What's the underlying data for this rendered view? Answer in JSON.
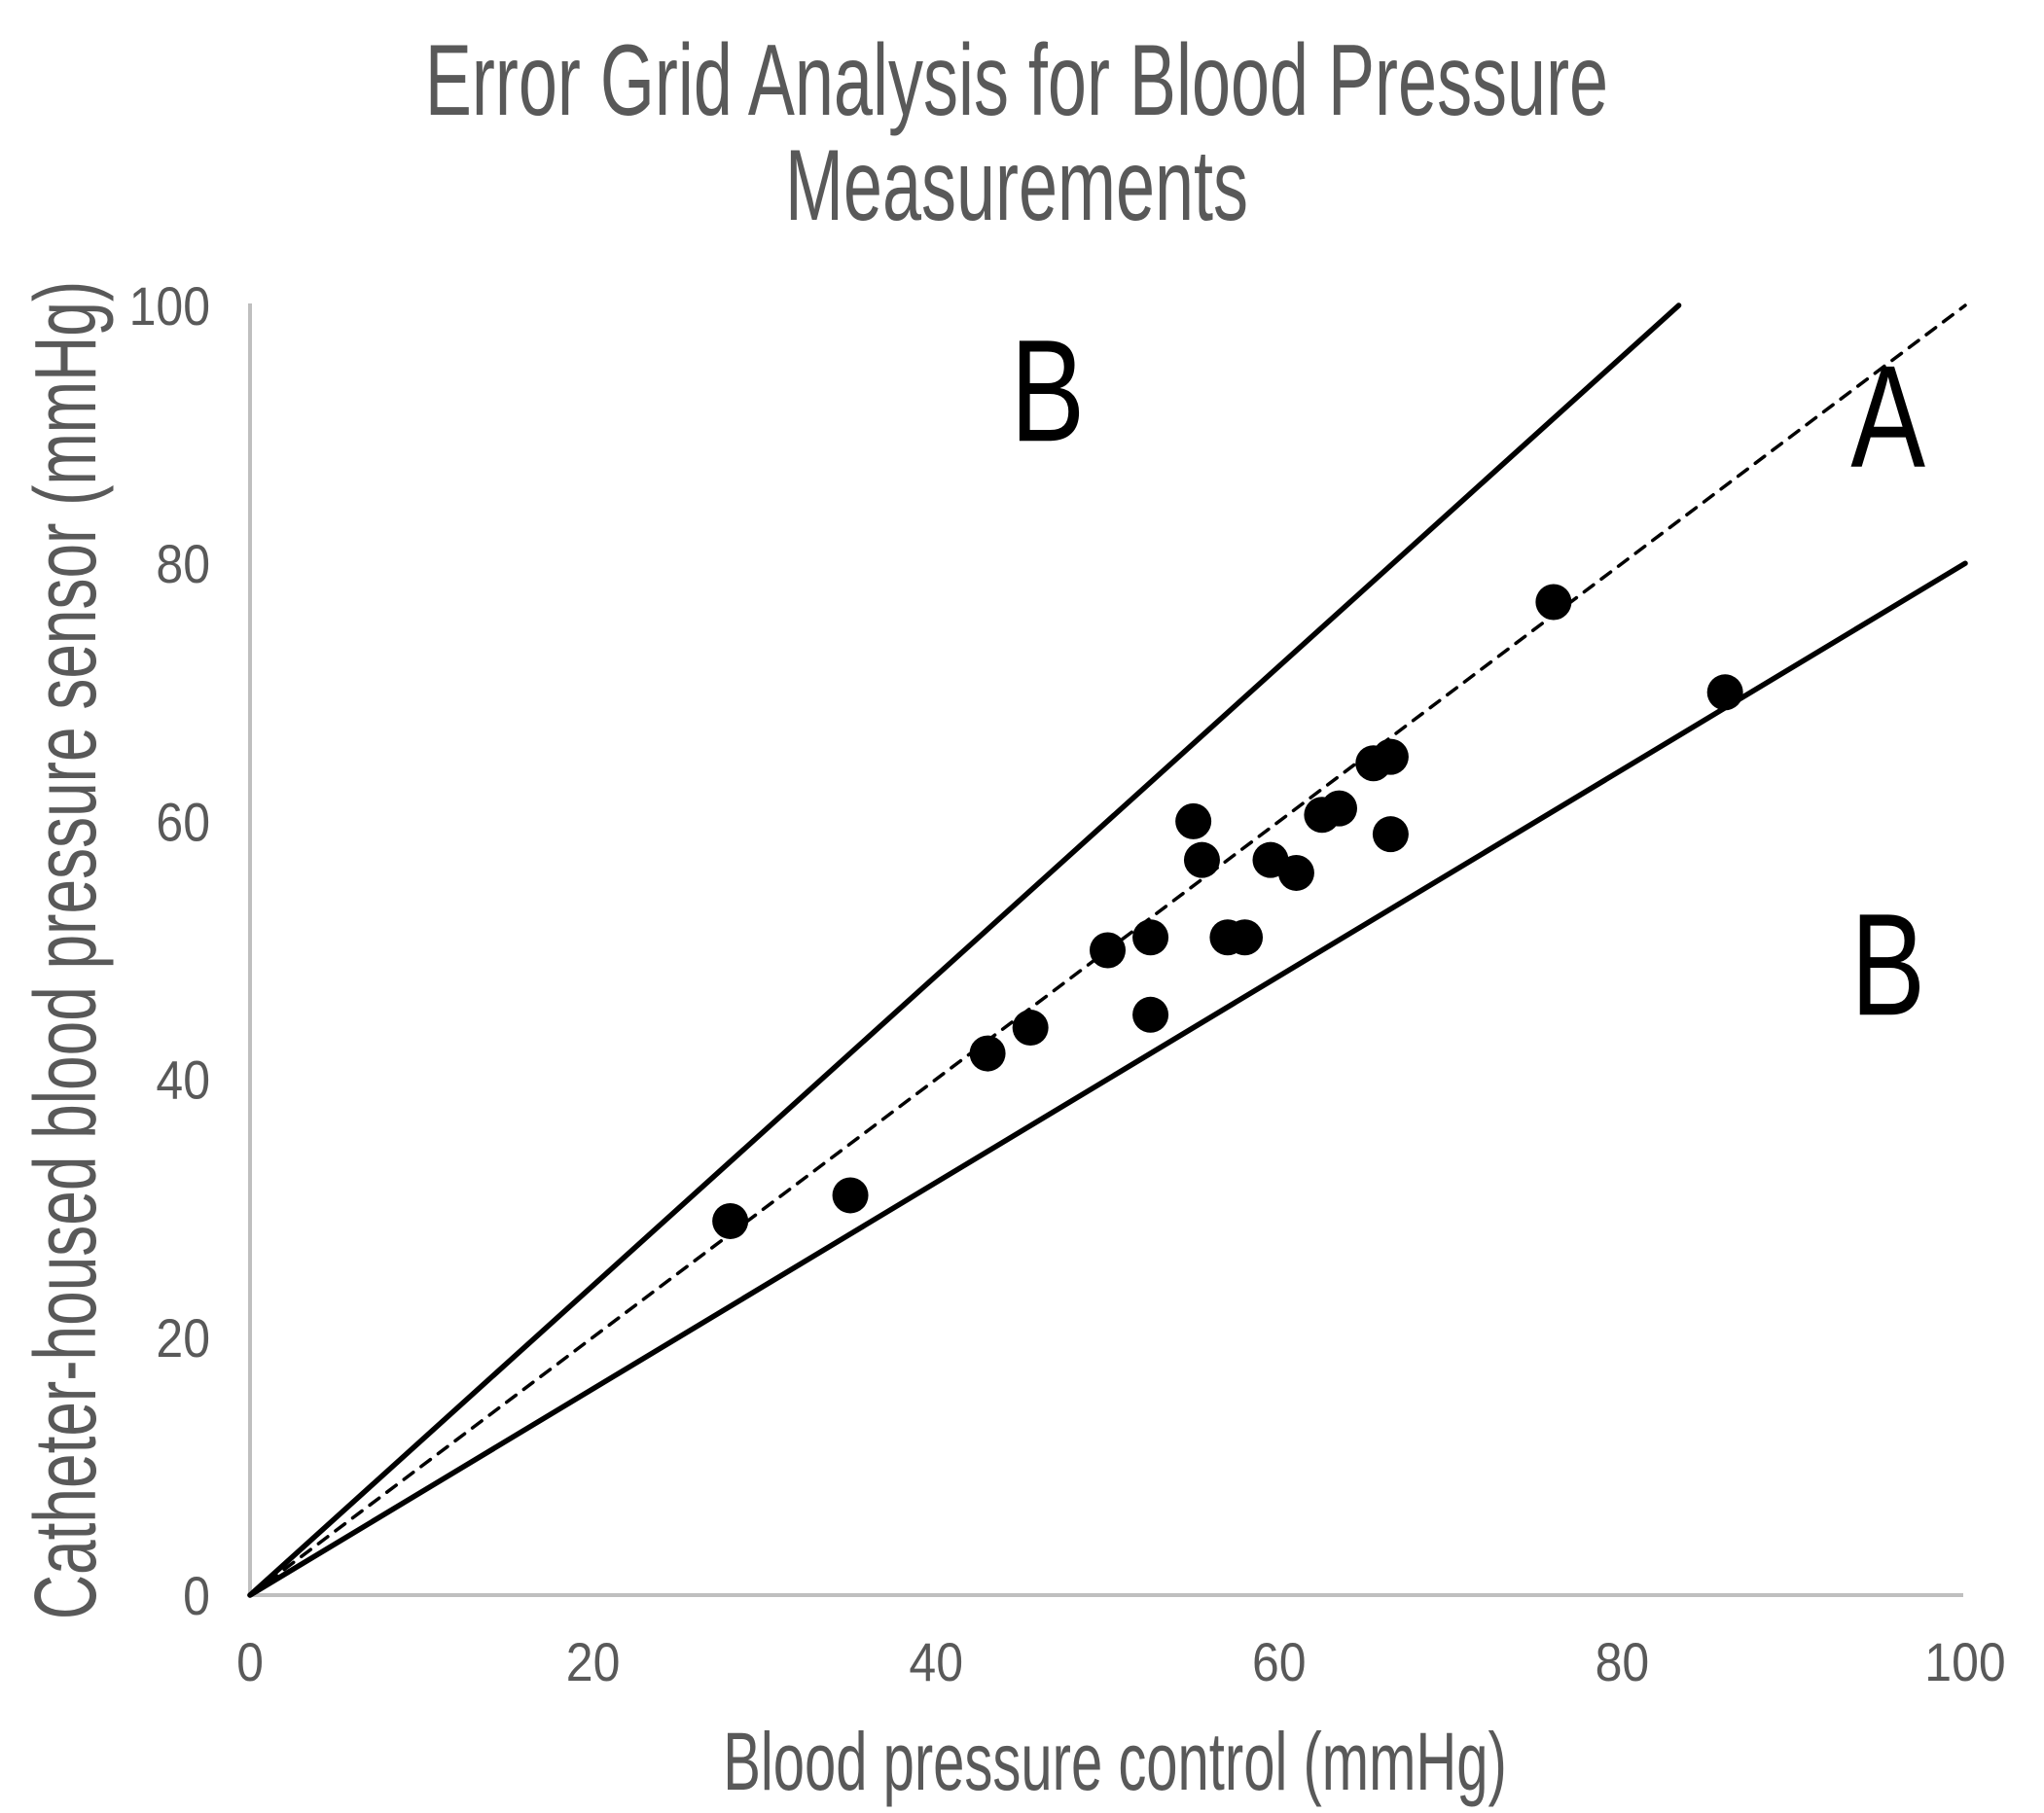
{
  "page": {
    "background": "#ffffff"
  },
  "chart_data": {
    "type": "scatter",
    "title": "Error Grid Analysis for Blood Pressure Measurements",
    "title_lines": [
      "Error Grid Analysis for Blood Pressure",
      "Measurements"
    ],
    "xlabel": "Blood pressure control (mmHg)",
    "ylabel": "Catheter-housed blood pressure sensor (mmHg)",
    "xlim": [
      0,
      100
    ],
    "ylim": [
      0,
      100
    ],
    "x_ticks": [
      0,
      20,
      40,
      60,
      80,
      100
    ],
    "y_ticks": [
      0,
      20,
      40,
      60,
      80,
      100
    ],
    "grid": false,
    "legend": false,
    "points": [
      [
        28,
        29
      ],
      [
        35,
        31
      ],
      [
        43,
        42
      ],
      [
        45.5,
        44
      ],
      [
        50,
        50
      ],
      [
        52.5,
        45
      ],
      [
        52.5,
        51
      ],
      [
        55,
        60
      ],
      [
        55.5,
        57
      ],
      [
        57,
        51
      ],
      [
        58,
        51
      ],
      [
        59.5,
        57
      ],
      [
        61,
        56
      ],
      [
        62.5,
        60.5
      ],
      [
        63.5,
        61
      ],
      [
        65.5,
        64.5
      ],
      [
        66.5,
        65
      ],
      [
        66.5,
        59
      ],
      [
        76,
        77
      ],
      [
        86,
        70
      ]
    ],
    "reference_lines": [
      {
        "name": "zone-boundary-upper",
        "equation": "y = 1.2x",
        "from": [
          0,
          0
        ],
        "to": [
          83.3,
          100
        ],
        "style": "solid"
      },
      {
        "name": "identity-line",
        "equation": "y = x",
        "from": [
          0,
          0
        ],
        "to": [
          100,
          100
        ],
        "style": "dashed"
      },
      {
        "name": "zone-boundary-lower",
        "equation": "y = 0.8x",
        "from": [
          0,
          0
        ],
        "to": [
          100,
          80
        ],
        "style": "solid"
      }
    ],
    "region_labels": [
      {
        "label": "B",
        "zone": "upper-left",
        "x": 46.5,
        "y": 93.5
      },
      {
        "label": "A",
        "zone": "along-identity",
        "x": 95.5,
        "y": 91.5
      },
      {
        "label": "B",
        "zone": "lower-right",
        "x": 95.5,
        "y": 49
      }
    ],
    "colors": {
      "points": "#000000",
      "reference_lines": "#000000",
      "region_labels": "#000000",
      "text_gray": "#595959",
      "axis": "#BFBFBF"
    }
  }
}
